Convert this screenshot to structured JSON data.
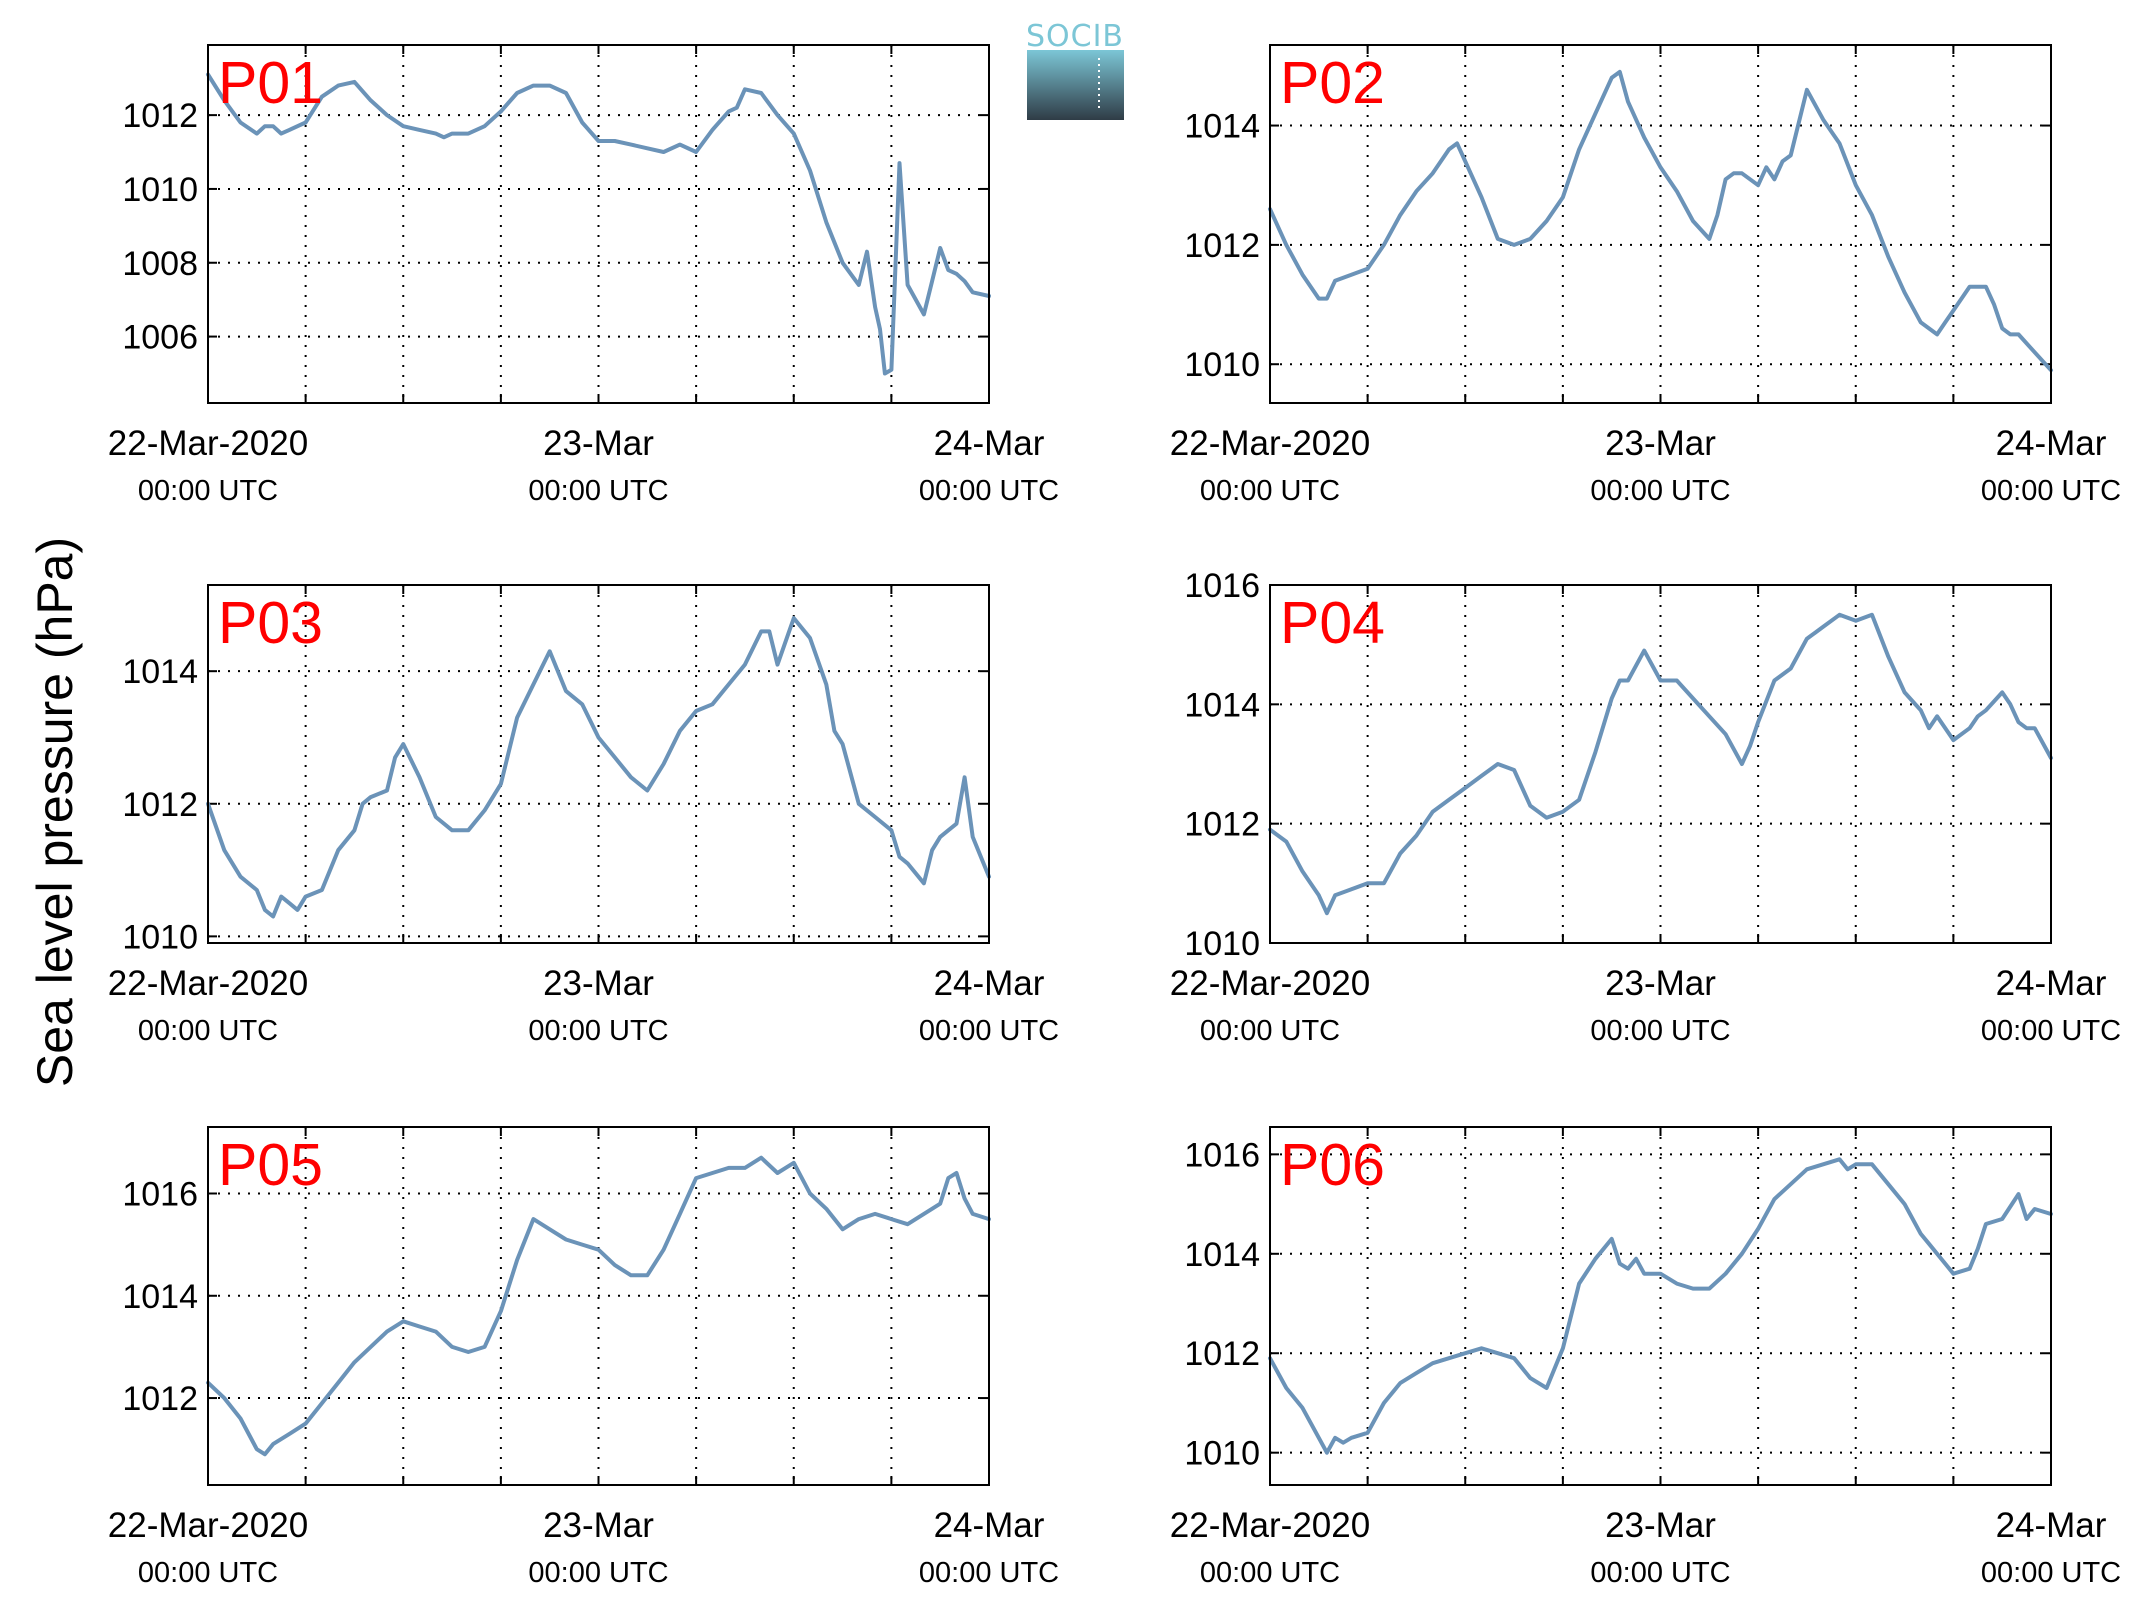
{
  "figure": {
    "ylabel": "Sea level pressure (hPa)",
    "logo_text": "SOCIB",
    "colors": {
      "line": "#6b93b8",
      "panel_label": "#ff0000",
      "logo_top": "#7cc6d6",
      "logo_bottom": "#2f3c46"
    }
  },
  "chart_data": [
    {
      "type": "line",
      "title": "P01",
      "x_ticks": [
        {
          "date": "22-Mar-2020",
          "time": "00:00 UTC"
        },
        {
          "date": "23-Mar",
          "time": "00:00 UTC"
        },
        {
          "date": "24-Mar",
          "time": "00:00 UTC"
        }
      ],
      "xlim": [
        0,
        48
      ],
      "ylim": [
        1004.2,
        1013.9
      ],
      "yticks": [
        1006,
        1008,
        1010,
        1012
      ],
      "grid": true,
      "series": [
        {
          "x": [
            0,
            1,
            2,
            3,
            3.5,
            4,
            4.5,
            5,
            6,
            7,
            8,
            9,
            10,
            11,
            12,
            13,
            14,
            14.5,
            15,
            16,
            17,
            18,
            19,
            20,
            21,
            22,
            23,
            24,
            25,
            26,
            27,
            28,
            29,
            30,
            31,
            32,
            32.5,
            33,
            34,
            35,
            36,
            37,
            38,
            39,
            40,
            40.5,
            41,
            41.3,
            41.6,
            42,
            42.5,
            43,
            44,
            44.5,
            45,
            45.5,
            46,
            46.5,
            47,
            48
          ],
          "y": [
            1013.1,
            1012.4,
            1011.8,
            1011.5,
            1011.7,
            1011.7,
            1011.5,
            1011.6,
            1011.8,
            1012.5,
            1012.8,
            1012.9,
            1012.4,
            1012.0,
            1011.7,
            1011.6,
            1011.5,
            1011.4,
            1011.5,
            1011.5,
            1011.7,
            1012.1,
            1012.6,
            1012.8,
            1012.8,
            1012.6,
            1011.8,
            1011.3,
            1011.3,
            1011.2,
            1011.1,
            1011.0,
            1011.2,
            1011.0,
            1011.6,
            1012.1,
            1012.2,
            1012.7,
            1012.6,
            1012.0,
            1011.5,
            1010.5,
            1009.1,
            1008.0,
            1007.4,
            1008.3,
            1006.8,
            1006.2,
            1005.0,
            1005.1,
            1010.7,
            1007.4,
            1006.6,
            1007.5,
            1008.4,
            1007.8,
            1007.7,
            1007.5,
            1007.2,
            1007.1
          ]
        }
      ]
    },
    {
      "type": "line",
      "title": "P02",
      "x_ticks": [
        {
          "date": "22-Mar-2020",
          "time": "00:00 UTC"
        },
        {
          "date": "23-Mar",
          "time": "00:00 UTC"
        },
        {
          "date": "24-Mar",
          "time": "00:00 UTC"
        }
      ],
      "xlim": [
        0,
        48
      ],
      "ylim": [
        1009.35,
        1015.35
      ],
      "yticks": [
        1010,
        1012,
        1014
      ],
      "grid": true,
      "series": [
        {
          "x": [
            0,
            1,
            2,
            3,
            3.5,
            4,
            5,
            6,
            7,
            8,
            9,
            10,
            11,
            11.5,
            12,
            13,
            14,
            15,
            16,
            17,
            18,
            19,
            20,
            21,
            21.5,
            22,
            23,
            24,
            25,
            26,
            27,
            27.5,
            28,
            28.5,
            29,
            30,
            30.5,
            31,
            31.5,
            32,
            33,
            34,
            34.5,
            35,
            36,
            37,
            38,
            39,
            40,
            41,
            41.5,
            42,
            43,
            44,
            44.5,
            45,
            45.5,
            46,
            47,
            48
          ],
          "y": [
            1012.6,
            1012.0,
            1011.5,
            1011.1,
            1011.1,
            1011.4,
            1011.5,
            1011.6,
            1012.0,
            1012.5,
            1012.9,
            1013.2,
            1013.6,
            1013.7,
            1013.4,
            1012.8,
            1012.1,
            1012.0,
            1012.1,
            1012.4,
            1012.8,
            1013.6,
            1014.2,
            1014.8,
            1014.9,
            1014.4,
            1013.8,
            1013.3,
            1012.9,
            1012.4,
            1012.1,
            1012.5,
            1013.1,
            1013.2,
            1013.2,
            1013.0,
            1013.3,
            1013.1,
            1013.4,
            1013.5,
            1014.6,
            1014.1,
            1013.9,
            1013.7,
            1013.0,
            1012.5,
            1011.8,
            1011.2,
            1010.7,
            1010.5,
            1010.7,
            1010.9,
            1011.3,
            1011.3,
            1011.0,
            1010.6,
            1010.5,
            1010.5,
            1010.2,
            1009.9
          ]
        }
      ]
    },
    {
      "type": "line",
      "title": "P03",
      "x_ticks": [
        {
          "date": "22-Mar-2020",
          "time": "00:00 UTC"
        },
        {
          "date": "23-Mar",
          "time": "00:00 UTC"
        },
        {
          "date": "24-Mar",
          "time": "00:00 UTC"
        }
      ],
      "xlim": [
        0,
        48
      ],
      "ylim": [
        1009.9,
        1015.3
      ],
      "yticks": [
        1010,
        1012,
        1014
      ],
      "grid": true,
      "series": [
        {
          "x": [
            0,
            1,
            2,
            3,
            3.5,
            4,
            4.5,
            5,
            5.5,
            6,
            7,
            8,
            9,
            9.5,
            10,
            11,
            11.5,
            12,
            13,
            14,
            15,
            16,
            17,
            18,
            19,
            20,
            21,
            22,
            23,
            24,
            25,
            26,
            27,
            28,
            29,
            30,
            31,
            32,
            33,
            34,
            34.5,
            35,
            36,
            37,
            38,
            38.5,
            39,
            40,
            41,
            42,
            42.5,
            43,
            44,
            44.5,
            45,
            45.5,
            46,
            46.5,
            47,
            48
          ],
          "y": [
            1012.0,
            1011.3,
            1010.9,
            1010.7,
            1010.4,
            1010.3,
            1010.6,
            1010.5,
            1010.4,
            1010.6,
            1010.7,
            1011.3,
            1011.6,
            1012.0,
            1012.1,
            1012.2,
            1012.7,
            1012.9,
            1012.4,
            1011.8,
            1011.6,
            1011.6,
            1011.9,
            1012.3,
            1013.3,
            1013.8,
            1014.3,
            1013.7,
            1013.5,
            1013.0,
            1012.7,
            1012.4,
            1012.2,
            1012.6,
            1013.1,
            1013.4,
            1013.5,
            1013.8,
            1014.1,
            1014.6,
            1014.6,
            1014.1,
            1014.8,
            1014.5,
            1013.8,
            1013.1,
            1012.9,
            1012.0,
            1011.8,
            1011.6,
            1011.2,
            1011.1,
            1010.8,
            1011.3,
            1011.5,
            1011.6,
            1011.7,
            1012.4,
            1011.5,
            1010.9
          ]
        }
      ]
    },
    {
      "type": "line",
      "title": "P04",
      "x_ticks": [
        {
          "date": "22-Mar-2020",
          "time": "00:00 UTC"
        },
        {
          "date": "23-Mar",
          "time": "00:00 UTC"
        },
        {
          "date": "24-Mar",
          "time": "00:00 UTC"
        }
      ],
      "xlim": [
        0,
        48
      ],
      "ylim": [
        1010,
        1016
      ],
      "yticks": [
        1010,
        1012,
        1014,
        1016
      ],
      "grid": true,
      "series": [
        {
          "x": [
            0,
            1,
            2,
            3,
            3.5,
            4,
            5,
            6,
            7,
            8,
            9,
            10,
            11,
            12,
            13,
            14,
            15,
            16,
            17,
            18,
            19,
            20,
            21,
            21.5,
            22,
            23,
            24,
            25,
            26,
            27,
            28,
            29,
            29.5,
            30,
            31,
            32,
            33,
            33.5,
            34,
            35,
            36,
            37,
            38,
            39,
            40,
            40.5,
            41,
            42,
            43,
            43.5,
            44,
            45,
            45.5,
            46,
            46.5,
            47,
            48
          ],
          "y": [
            1011.9,
            1011.7,
            1011.2,
            1010.8,
            1010.5,
            1010.8,
            1010.9,
            1011.0,
            1011.0,
            1011.5,
            1011.8,
            1012.2,
            1012.4,
            1012.6,
            1012.8,
            1013.0,
            1012.9,
            1012.3,
            1012.1,
            1012.2,
            1012.4,
            1013.2,
            1014.1,
            1014.4,
            1014.4,
            1014.9,
            1014.4,
            1014.4,
            1014.1,
            1013.8,
            1013.5,
            1013.0,
            1013.3,
            1013.7,
            1014.4,
            1014.6,
            1015.1,
            1015.2,
            1015.3,
            1015.5,
            1015.4,
            1015.5,
            1014.8,
            1014.2,
            1013.9,
            1013.6,
            1013.8,
            1013.4,
            1013.6,
            1013.8,
            1013.9,
            1014.2,
            1014.0,
            1013.7,
            1013.6,
            1013.6,
            1013.1
          ]
        }
      ]
    },
    {
      "type": "line",
      "title": "P05",
      "x_ticks": [
        {
          "date": "22-Mar-2020",
          "time": "00:00 UTC"
        },
        {
          "date": "23-Mar",
          "time": "00:00 UTC"
        },
        {
          "date": "24-Mar",
          "time": "00:00 UTC"
        }
      ],
      "xlim": [
        0,
        48
      ],
      "ylim": [
        1010.3,
        1017.3
      ],
      "yticks": [
        1012,
        1014,
        1016
      ],
      "grid": true,
      "series": [
        {
          "x": [
            0,
            1,
            2,
            3,
            3.5,
            4,
            5,
            6,
            7,
            8,
            9,
            10,
            11,
            12,
            13,
            14,
            15,
            16,
            17,
            18,
            19,
            20,
            21,
            22,
            23,
            24,
            25,
            26,
            27,
            28,
            29,
            30,
            31,
            32,
            33,
            34,
            35,
            36,
            37,
            38,
            39,
            40,
            41,
            42,
            43,
            44,
            45,
            45.5,
            46,
            46.5,
            47,
            48
          ],
          "y": [
            1012.3,
            1012.0,
            1011.6,
            1011.0,
            1010.9,
            1011.1,
            1011.3,
            1011.5,
            1011.9,
            1012.3,
            1012.7,
            1013.0,
            1013.3,
            1013.5,
            1013.4,
            1013.3,
            1013.0,
            1012.9,
            1013.0,
            1013.7,
            1014.7,
            1015.5,
            1015.3,
            1015.1,
            1015.0,
            1014.9,
            1014.6,
            1014.4,
            1014.4,
            1014.9,
            1015.6,
            1016.3,
            1016.4,
            1016.5,
            1016.5,
            1016.7,
            1016.4,
            1016.6,
            1016.0,
            1015.7,
            1015.3,
            1015.5,
            1015.6,
            1015.5,
            1015.4,
            1015.6,
            1015.8,
            1016.3,
            1016.4,
            1015.9,
            1015.6,
            1015.5
          ]
        }
      ]
    },
    {
      "type": "line",
      "title": "P06",
      "x_ticks": [
        {
          "date": "22-Mar-2020",
          "time": "00:00 UTC"
        },
        {
          "date": "23-Mar",
          "time": "00:00 UTC"
        },
        {
          "date": "24-Mar",
          "time": "00:00 UTC"
        }
      ],
      "xlim": [
        0,
        48
      ],
      "ylim": [
        1009.35,
        1016.55
      ],
      "yticks": [
        1010,
        1012,
        1014,
        1016
      ],
      "grid": true,
      "series": [
        {
          "x": [
            0,
            1,
            2,
            3,
            3.5,
            4,
            4.5,
            5,
            6,
            7,
            8,
            9,
            10,
            11,
            12,
            13,
            14,
            15,
            16,
            17,
            18,
            19,
            20,
            21,
            21.5,
            22,
            22.5,
            23,
            24,
            25,
            26,
            27,
            28,
            29,
            30,
            31,
            32,
            33,
            34,
            35,
            35.5,
            36,
            37,
            38,
            39,
            40,
            40.5,
            41,
            42,
            43,
            43.5,
            44,
            45,
            46,
            46.5,
            47,
            48
          ],
          "y": [
            1011.9,
            1011.3,
            1010.9,
            1010.3,
            1010.0,
            1010.3,
            1010.2,
            1010.3,
            1010.4,
            1011.0,
            1011.4,
            1011.6,
            1011.8,
            1011.9,
            1012.0,
            1012.1,
            1012.0,
            1011.9,
            1011.5,
            1011.3,
            1012.1,
            1013.4,
            1013.9,
            1014.3,
            1013.8,
            1013.7,
            1013.9,
            1013.6,
            1013.6,
            1013.4,
            1013.3,
            1013.3,
            1013.6,
            1014.0,
            1014.5,
            1015.1,
            1015.4,
            1015.7,
            1015.8,
            1015.9,
            1015.7,
            1015.8,
            1015.8,
            1015.4,
            1015.0,
            1014.4,
            1014.2,
            1014.0,
            1013.6,
            1013.7,
            1014.1,
            1014.6,
            1014.7,
            1015.2,
            1014.7,
            1014.9,
            1014.8
          ]
        }
      ]
    }
  ]
}
